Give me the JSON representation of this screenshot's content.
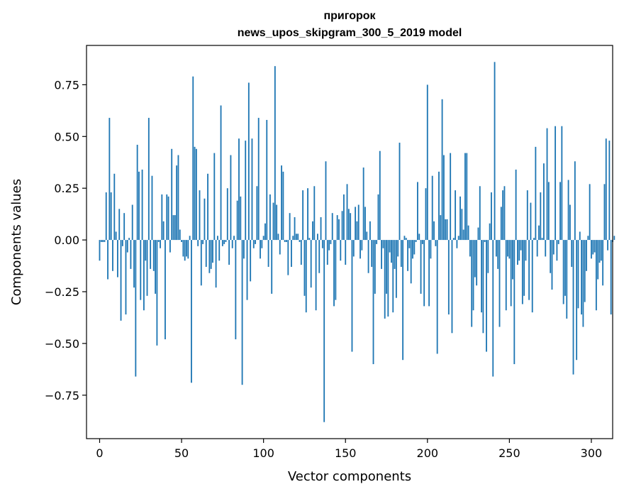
{
  "chart_data": {
    "type": "bar",
    "title": "пригорок",
    "subtitle": "news_upos_skipgram_300_5_2019 model",
    "xlabel": "Vector components",
    "ylabel": "Components values",
    "xlim": [
      -8,
      313
    ],
    "ylim": [
      -0.96,
      0.94
    ],
    "xticks": [
      0,
      50,
      100,
      150,
      200,
      250,
      300
    ],
    "yticks": [
      -0.75,
      -0.5,
      -0.25,
      0.0,
      0.25,
      0.5,
      0.75
    ],
    "ytick_labels": [
      "−0.75",
      "−0.50",
      "−0.25",
      "0.00",
      "0.25",
      "0.50",
      "0.75"
    ],
    "bar_color": "#1f77b4",
    "values": [
      -0.1,
      -0.01,
      -0.01,
      -0.01,
      0.23,
      -0.19,
      0.59,
      0.23,
      -0.15,
      0.32,
      0.04,
      -0.18,
      0.15,
      -0.39,
      -0.03,
      0.13,
      -0.36,
      -0.06,
      0.01,
      -0.14,
      0.17,
      -0.23,
      -0.66,
      0.46,
      0.33,
      -0.29,
      0.34,
      -0.34,
      -0.1,
      -0.27,
      0.59,
      -0.14,
      0.31,
      -0.15,
      -0.26,
      -0.51,
      -0.01,
      -0.04,
      0.22,
      0.09,
      -0.48,
      0.22,
      0.21,
      -0.06,
      0.44,
      0.12,
      0.12,
      0.36,
      0.41,
      0.05,
      -0.01,
      -0.08,
      -0.1,
      -0.08,
      -0.09,
      0.02,
      -0.69,
      0.79,
      0.45,
      0.44,
      -0.03,
      0.24,
      -0.22,
      -0.02,
      0.2,
      -0.13,
      0.32,
      -0.16,
      -0.14,
      -0.11,
      0.42,
      -0.23,
      0.02,
      -0.1,
      0.65,
      -0.03,
      -0.02,
      -0.01,
      0.25,
      -0.12,
      0.41,
      -0.04,
      0.02,
      -0.48,
      0.19,
      0.49,
      0.21,
      -0.7,
      -0.09,
      0.48,
      -0.29,
      0.76,
      -0.2,
      0.49,
      -0.04,
      -0.02,
      0.26,
      0.59,
      -0.09,
      -0.04,
      0.02,
      0.08,
      0.58,
      -0.13,
      0.22,
      -0.26,
      0.18,
      0.84,
      0.17,
      0.03,
      -0.07,
      0.36,
      0.33,
      -0.01,
      -0.01,
      -0.17,
      0.13,
      -0.13,
      0.02,
      0.11,
      0.03,
      0.03,
      -0.01,
      -0.12,
      0.24,
      -0.27,
      -0.35,
      0.25,
      0.01,
      -0.23,
      0.09,
      0.26,
      -0.34,
      0.03,
      -0.16,
      0.11,
      -0.04,
      -0.88,
      0.38,
      -0.12,
      -0.05,
      -0.02,
      0.13,
      -0.32,
      -0.29,
      0.12,
      0.1,
      -0.1,
      0.14,
      0.22,
      -0.12,
      0.27,
      0.15,
      0.13,
      -0.54,
      -0.08,
      0.16,
      0.09,
      0.17,
      -0.09,
      -0.05,
      0.35,
      0.16,
      0.04,
      -0.16,
      0.09,
      -0.13,
      -0.6,
      -0.26,
      -0.02,
      0.22,
      0.43,
      -0.14,
      -0.04,
      -0.38,
      -0.26,
      -0.37,
      -0.06,
      -0.11,
      -0.35,
      -0.14,
      -0.28,
      -0.08,
      0.47,
      -0.13,
      -0.58,
      0.02,
      0.01,
      -0.15,
      -0.04,
      -0.21,
      -0.09,
      -0.07,
      -0.01,
      0.28,
      0.03,
      -0.26,
      -0.02,
      -0.32,
      0.25,
      0.75,
      -0.32,
      -0.09,
      0.31,
      0.09,
      -0.03,
      -0.55,
      0.33,
      0.12,
      0.68,
      0.41,
      0.1,
      0.1,
      -0.36,
      0.42,
      -0.45,
      0.01,
      0.24,
      -0.04,
      0.02,
      0.21,
      0.15,
      0.05,
      0.42,
      0.42,
      0.07,
      -0.08,
      -0.42,
      -0.34,
      -0.18,
      -0.22,
      0.06,
      0.26,
      -0.35,
      -0.45,
      -0.01,
      -0.54,
      -0.16,
      0.08,
      0.23,
      -0.66,
      0.86,
      -0.08,
      -0.14,
      -0.42,
      0.16,
      0.24,
      0.26,
      -0.34,
      -0.08,
      -0.09,
      -0.32,
      -0.19,
      -0.6,
      0.34,
      -0.12,
      -0.1,
      -0.05,
      -0.31,
      -0.27,
      -0.1,
      0.24,
      -0.29,
      0.18,
      -0.35,
      0.01,
      0.45,
      -0.08,
      0.07,
      0.23,
      0.01,
      0.37,
      -0.08,
      0.54,
      0.28,
      -0.16,
      -0.24,
      -0.07,
      0.55,
      -0.1,
      -0.02,
      0.28,
      0.55,
      -0.31,
      -0.27,
      -0.38,
      0.29,
      0.17,
      -0.13,
      -0.65,
      0.38,
      -0.58,
      -0.33,
      0.04,
      -0.36,
      -0.42,
      -0.3,
      -0.15,
      0.02,
      0.27,
      -0.09,
      -0.07,
      -0.06,
      -0.34,
      -0.19,
      -0.11,
      -0.1,
      -0.22,
      0.27,
      0.49,
      -0.05,
      0.48,
      -0.36,
      -0.01,
      0.02
    ]
  }
}
